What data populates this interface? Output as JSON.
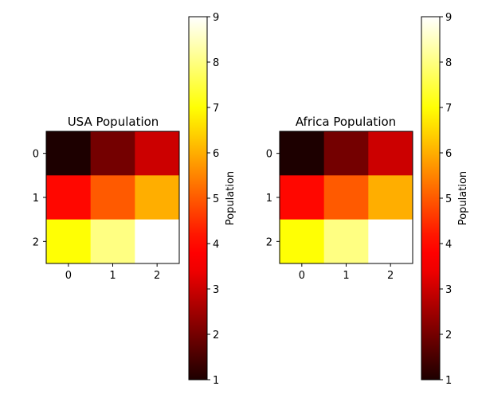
{
  "chart_data": [
    {
      "type": "heatmap",
      "title": "USA Population",
      "x_ticks": [
        "0",
        "1",
        "2"
      ],
      "y_ticks": [
        "0",
        "1",
        "2"
      ],
      "values": [
        [
          1,
          2,
          3
        ],
        [
          4,
          5,
          6
        ],
        [
          7,
          8,
          9
        ]
      ],
      "colormap": "hot",
      "colorbar": {
        "label": "Population",
        "range": [
          1,
          9
        ],
        "ticks": [
          "1",
          "2",
          "3",
          "4",
          "5",
          "6",
          "7",
          "8",
          "9"
        ]
      }
    },
    {
      "type": "heatmap",
      "title": "Africa Population",
      "x_ticks": [
        "0",
        "1",
        "2"
      ],
      "y_ticks": [
        "0",
        "1",
        "2"
      ],
      "values": [
        [
          1,
          2,
          3
        ],
        [
          4,
          5,
          6
        ],
        [
          7,
          8,
          9
        ]
      ],
      "colormap": "hot",
      "colorbar": {
        "label": "Population",
        "range": [
          1,
          9
        ],
        "ticks": [
          "1",
          "2",
          "3",
          "4",
          "5",
          "6",
          "7",
          "8",
          "9"
        ]
      }
    }
  ]
}
